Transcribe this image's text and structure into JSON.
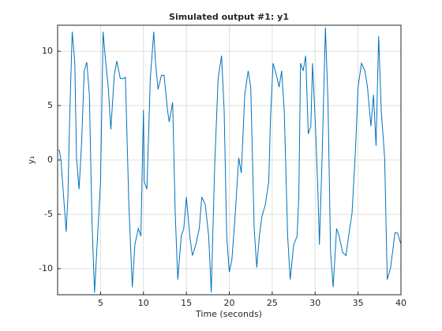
{
  "chart_data": {
    "type": "line",
    "title": "Simulated output #1: y1",
    "xlabel": "Time (seconds)",
    "ylabel": "y₁",
    "x": [
      0,
      0.2,
      0.4,
      0.7,
      1.0,
      1.2,
      1.4,
      1.7,
      2.0,
      2.2,
      2.5,
      2.8,
      3.1,
      3.4,
      3.7,
      4.0,
      4.3,
      4.6,
      5.0,
      5.3,
      5.6,
      5.9,
      6.2,
      6.6,
      6.9,
      7.3,
      7.7,
      7.9,
      8.0,
      8.3,
      8.7,
      9.0,
      9.4,
      9.7,
      10.0,
      10.1,
      10.4,
      10.8,
      11.2,
      11.4,
      11.7,
      12.1,
      12.4,
      12.8,
      13.0,
      13.4,
      13.7,
      14.0,
      14.4,
      14.7,
      15.0,
      15.4,
      15.7,
      16.1,
      16.5,
      16.8,
      17.2,
      17.6,
      17.9,
      18.3,
      18.7,
      19.1,
      19.4,
      19.7,
      20.0,
      20.3,
      20.7,
      21.1,
      21.4,
      21.8,
      22.2,
      22.5,
      22.9,
      23.2,
      23.5,
      23.8,
      24.2,
      24.6,
      24.8,
      25.1,
      25.5,
      25.8,
      26.1,
      26.4,
      26.8,
      27.1,
      27.5,
      27.9,
      28.1,
      28.3,
      28.6,
      28.9,
      29.2,
      29.5,
      29.7,
      30.0,
      30.3,
      30.5,
      30.8,
      31.2,
      31.5,
      31.8,
      32.1,
      32.5,
      32.8,
      33.2,
      33.6,
      33.9,
      34.3,
      34.7,
      35.0,
      35.4,
      35.8,
      36.1,
      36.5,
      36.8,
      37.1,
      37.4,
      37.7,
      38.1,
      38.4,
      38.8,
      39.3,
      39.6,
      40.0
    ],
    "series": [
      {
        "name": "y1",
        "color": "#0072bd",
        "values": [
          0.9,
          0.9,
          -0.1,
          -3.4,
          -6.6,
          -3.4,
          3.8,
          11.8,
          9,
          0.2,
          -2.7,
          1.7,
          8.2,
          9,
          6,
          -5.6,
          -12.2,
          -7.8,
          -2,
          11.8,
          9,
          6.7,
          2.8,
          7.8,
          9.1,
          7.5,
          7.5,
          7.6,
          4.6,
          -4.1,
          -11.7,
          -7.8,
          -6.3,
          -7,
          4.6,
          -2,
          -2.7,
          7.5,
          11.8,
          9,
          6.5,
          7.8,
          7.8,
          4.6,
          3.5,
          5.3,
          -4.9,
          -11,
          -7,
          -6.3,
          -3.4,
          -7,
          -8.8,
          -7.8,
          -6.3,
          -3.4,
          -4.1,
          -7,
          -12.2,
          -0.5,
          7.5,
          9.6,
          4.6,
          -7,
          -10.3,
          -9.2,
          -4.9,
          0.2,
          -1.2,
          6,
          8.2,
          6.7,
          -6.3,
          -9.9,
          -7,
          -5.2,
          -4.1,
          -2,
          3.8,
          8.9,
          7.8,
          6.7,
          8.2,
          4.6,
          -7,
          -11,
          -7.8,
          -7,
          -3.4,
          8.9,
          8.2,
          9.6,
          2.4,
          3.1,
          8.9,
          3.8,
          -2.3,
          -7.8,
          -0.1,
          12.2,
          5.3,
          -8.5,
          -11.7,
          -6.3,
          -7,
          -8.5,
          -8.8,
          -7,
          -4.9,
          0.9,
          6.7,
          8.9,
          8.2,
          6.7,
          3.1,
          6,
          1.3,
          11.4,
          4.6,
          0.2,
          -11,
          -9.9,
          -6.7,
          -6.7,
          -7.8
        ]
      }
    ],
    "xlim": [
      0,
      40
    ],
    "xticks": [
      5,
      10,
      15,
      20,
      25,
      30,
      35,
      40
    ],
    "ylim": [
      -12.4,
      12.4
    ],
    "yticks": [
      -10,
      -5,
      0,
      5,
      10
    ],
    "grid": true
  }
}
